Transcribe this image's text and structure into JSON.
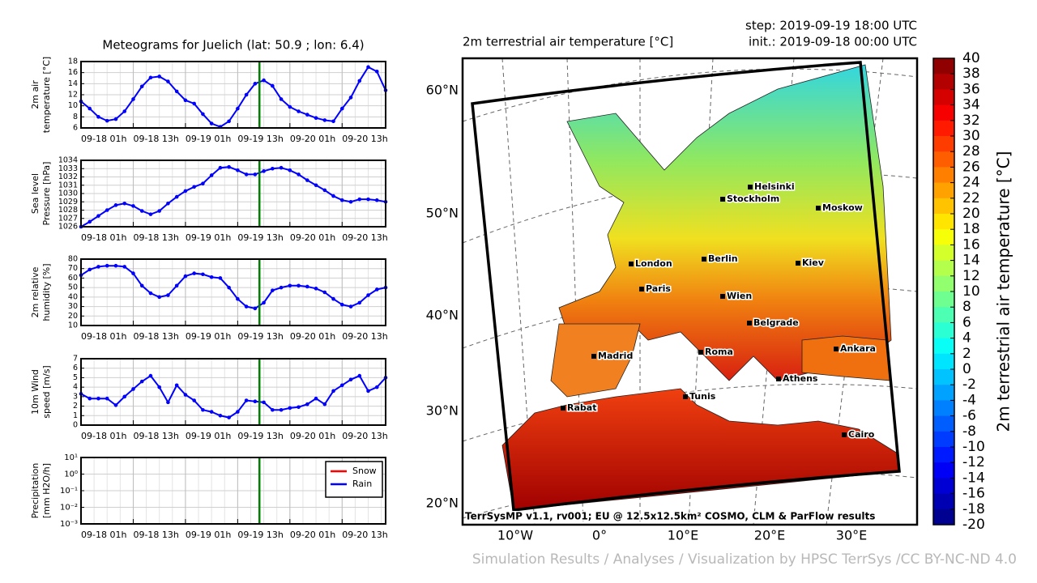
{
  "chart_data": [
    {
      "type": "line",
      "title": "Meteograms for Juelich (lat: 50.9 ; lon: 6.4)",
      "ylabel": [
        "2m air",
        "temperature [°C]"
      ],
      "x": [
        1,
        3,
        5,
        7,
        9,
        11,
        13,
        15,
        17,
        19,
        21,
        23,
        25,
        27,
        29,
        31,
        33,
        35,
        37,
        39,
        41,
        43,
        45,
        47,
        49,
        51,
        53,
        55,
        57,
        59,
        61,
        63,
        65,
        67,
        69,
        71
      ],
      "xlim": [
        1,
        71
      ],
      "xticks": [
        {
          "value": 1,
          "label": "09-18 01h"
        },
        {
          "value": 13,
          "label": "09-18 13h"
        },
        {
          "value": 25,
          "label": "09-19 01h"
        },
        {
          "value": 37,
          "label": "09-19 13h"
        },
        {
          "value": 49,
          "label": "09-20 01h"
        },
        {
          "value": 61,
          "label": "09-20 13h"
        }
      ],
      "ylim": [
        6,
        18
      ],
      "yticks": [
        6,
        8,
        10,
        12,
        14,
        16,
        18
      ],
      "vline_x": 42,
      "grid": true,
      "series": [
        {
          "color": "#0000ff",
          "values": [
            10.8,
            9.5,
            8.0,
            7.3,
            7.6,
            9.0,
            11.2,
            13.5,
            15.1,
            15.3,
            14.4,
            12.6,
            11.0,
            10.4,
            8.5,
            6.8,
            6.2,
            7.2,
            9.5,
            12.0,
            14.0,
            14.6,
            13.6,
            11.2,
            9.8,
            9.0,
            8.4,
            7.8,
            7.4,
            7.2,
            9.5,
            11.5,
            14.5,
            17.0,
            16.2,
            12.8
          ]
        }
      ]
    },
    {
      "type": "line",
      "ylabel": [
        "Sea level",
        "Pressure [hPa]"
      ],
      "x": [
        1,
        3,
        5,
        7,
        9,
        11,
        13,
        15,
        17,
        19,
        21,
        23,
        25,
        27,
        29,
        31,
        33,
        35,
        37,
        39,
        41,
        43,
        45,
        47,
        49,
        51,
        53,
        55,
        57,
        59,
        61,
        63,
        65,
        67,
        69,
        71
      ],
      "xlim": [
        1,
        71
      ],
      "xticks": [
        {
          "value": 1,
          "label": "09-18 01h"
        },
        {
          "value": 13,
          "label": "09-18 13h"
        },
        {
          "value": 25,
          "label": "09-19 01h"
        },
        {
          "value": 37,
          "label": "09-19 13h"
        },
        {
          "value": 49,
          "label": "09-20 01h"
        },
        {
          "value": 61,
          "label": "09-20 13h"
        }
      ],
      "ylim": [
        1026,
        1034
      ],
      "yticks": [
        1026,
        1027,
        1028,
        1029,
        1030,
        1031,
        1032,
        1033,
        1034
      ],
      "vline_x": 42,
      "grid": true,
      "series": [
        {
          "color": "#0000ff",
          "values": [
            1026.0,
            1026.6,
            1027.3,
            1028.0,
            1028.6,
            1028.8,
            1028.5,
            1027.9,
            1027.5,
            1027.9,
            1028.8,
            1029.6,
            1030.3,
            1030.8,
            1031.2,
            1032.2,
            1033.1,
            1033.2,
            1032.8,
            1032.3,
            1032.3,
            1032.7,
            1033.0,
            1033.1,
            1032.8,
            1032.3,
            1031.6,
            1031.0,
            1030.4,
            1029.7,
            1029.2,
            1029.0,
            1029.3,
            1029.3,
            1029.2,
            1029.0
          ]
        }
      ]
    },
    {
      "type": "line",
      "ylabel": [
        "2m relative",
        "humidity [%]"
      ],
      "x": [
        1,
        3,
        5,
        7,
        9,
        11,
        13,
        15,
        17,
        19,
        21,
        23,
        25,
        27,
        29,
        31,
        33,
        35,
        37,
        39,
        41,
        43,
        45,
        47,
        49,
        51,
        53,
        55,
        57,
        59,
        61,
        63,
        65,
        67,
        69,
        71
      ],
      "xlim": [
        1,
        71
      ],
      "xticks": [
        {
          "value": 1,
          "label": "09-18 01h"
        },
        {
          "value": 13,
          "label": "09-18 13h"
        },
        {
          "value": 25,
          "label": "09-19 01h"
        },
        {
          "value": 37,
          "label": "09-19 13h"
        },
        {
          "value": 49,
          "label": "09-20 01h"
        },
        {
          "value": 61,
          "label": "09-20 13h"
        }
      ],
      "ylim": [
        10,
        80
      ],
      "yticks": [
        10,
        20,
        30,
        40,
        50,
        60,
        70,
        80
      ],
      "vline_x": 42,
      "grid": true,
      "series": [
        {
          "color": "#0000ff",
          "values": [
            63,
            69,
            72,
            73,
            73,
            72,
            65,
            52,
            44,
            40,
            42,
            52,
            62,
            65,
            64,
            61,
            60,
            50,
            38,
            30,
            28,
            34,
            47,
            50,
            52,
            52,
            51,
            49,
            45,
            38,
            32,
            30,
            34,
            42,
            48,
            50
          ]
        }
      ]
    },
    {
      "type": "line",
      "ylabel": [
        "10m Wind",
        "speed [m/s]"
      ],
      "x": [
        1,
        3,
        5,
        7,
        9,
        11,
        13,
        15,
        17,
        19,
        21,
        23,
        25,
        27,
        29,
        31,
        33,
        35,
        37,
        39,
        41,
        43,
        45,
        47,
        49,
        51,
        53,
        55,
        57,
        59,
        61,
        63,
        65,
        67,
        69,
        71
      ],
      "xlim": [
        1,
        71
      ],
      "xticks": [
        {
          "value": 1,
          "label": "09-18 01h"
        },
        {
          "value": 13,
          "label": "09-18 13h"
        },
        {
          "value": 25,
          "label": "09-19 01h"
        },
        {
          "value": 37,
          "label": "09-19 13h"
        },
        {
          "value": 49,
          "label": "09-20 01h"
        },
        {
          "value": 61,
          "label": "09-20 13h"
        }
      ],
      "ylim": [
        0,
        7
      ],
      "yticks": [
        0,
        1,
        2,
        3,
        4,
        5,
        6,
        7
      ],
      "vline_x": 42,
      "grid": true,
      "series": [
        {
          "color": "#0000ff",
          "values": [
            3.3,
            2.8,
            2.8,
            2.8,
            2.1,
            3.0,
            3.8,
            4.6,
            5.2,
            4.0,
            2.4,
            4.2,
            3.2,
            2.6,
            1.6,
            1.4,
            1.0,
            0.8,
            1.4,
            2.6,
            2.5,
            2.4,
            1.6,
            1.6,
            1.8,
            1.9,
            2.2,
            2.8,
            2.2,
            3.6,
            4.2,
            4.8,
            5.2,
            3.6,
            4.0,
            5.0
          ]
        }
      ]
    },
    {
      "type": "log_line",
      "ylabel": [
        "Precipitation",
        "[mm H2O/h]"
      ],
      "xlim": [
        1,
        71
      ],
      "xticks": [
        {
          "value": 1,
          "label": "09-18 01h"
        },
        {
          "value": 13,
          "label": "09-18 13h"
        },
        {
          "value": 25,
          "label": "09-19 01h"
        },
        {
          "value": 37,
          "label": "09-19 13h"
        },
        {
          "value": 49,
          "label": "09-20 01h"
        },
        {
          "value": 61,
          "label": "09-20 13h"
        }
      ],
      "ylim": [
        0.001,
        10
      ],
      "log_y": true,
      "yticks": [
        {
          "value": 10,
          "label": "10¹"
        },
        {
          "value": 1,
          "label": "10⁰"
        },
        {
          "value": 0.1,
          "label": "10⁻¹"
        },
        {
          "value": 0.01,
          "label": "10⁻²"
        },
        {
          "value": 0.001,
          "label": "10⁻³"
        }
      ],
      "vline_x": 42,
      "grid": true,
      "legend": "upper right",
      "series": [
        {
          "name": "Snow",
          "color": "#ff0000"
        },
        {
          "name": "Rain",
          "color": "#0000ff"
        }
      ]
    },
    {
      "type": "map",
      "title": "2m terrestrial air temperature [°C]",
      "step": "step: 2019-09-19 18:00 UTC",
      "init": "init.: 2019-09-18 00:00 UTC",
      "lat_labels": [
        "60°N",
        "50°N",
        "40°N",
        "30°N",
        "20°N"
      ],
      "lon_labels": [
        "10°W",
        "0°",
        "10°E",
        "20°E",
        "30°E"
      ],
      "cities": [
        "Helsinki",
        "Stockholm",
        "Moskow",
        "London",
        "Berlin",
        "Kiev",
        "Paris",
        "Wien",
        "Belgrade",
        "Madrid",
        "Roma",
        "Ankara",
        "Athens",
        "Tunis",
        "Rabat",
        "Cairo"
      ],
      "credit": "TerrSysMP v1.1, rv001; EU @ 12.5x12.5km² COSMO, CLM & ParFlow results",
      "colorbar": {
        "label": "2m terrestrial air temperature [°C]",
        "lim": [
          -20,
          40
        ],
        "ticks": [
          40,
          38,
          36,
          34,
          32,
          30,
          28,
          26,
          24,
          22,
          20,
          18,
          16,
          14,
          12,
          10,
          8,
          6,
          4,
          2,
          0,
          -2,
          -4,
          -6,
          -8,
          -10,
          -12,
          -14,
          -16,
          -18,
          -20
        ]
      }
    }
  ],
  "footer": "Simulation Results / Analyses / Visualization by HPSC TerrSys /CC BY-NC-ND 4.0"
}
